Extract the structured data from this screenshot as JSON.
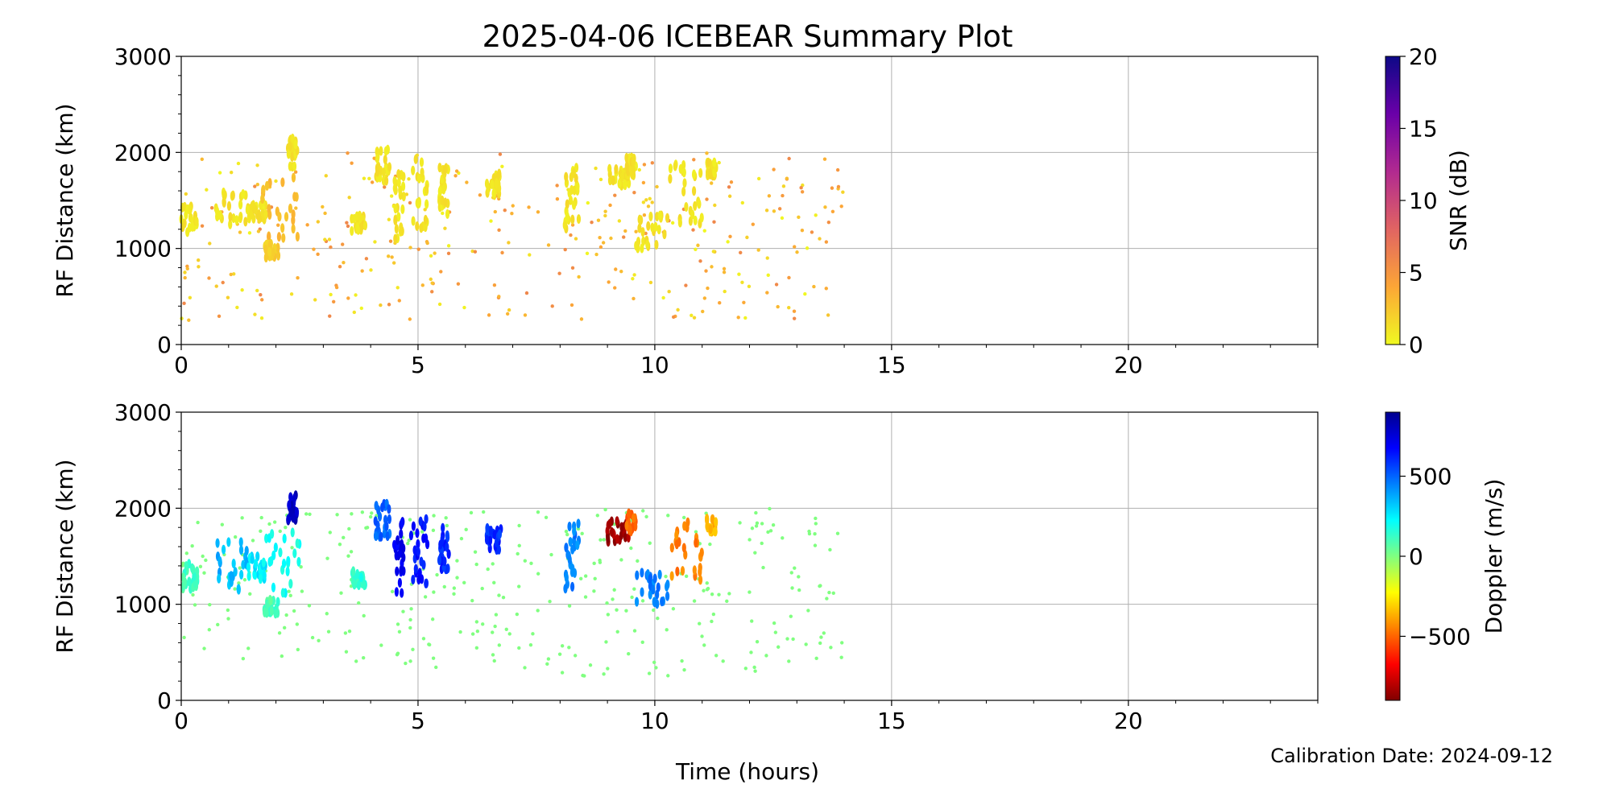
{
  "title": "2025-04-06 ICEBEAR Summary Plot",
  "calibration": "Calibration Date: 2024-09-12",
  "xlabel": "Time (hours)",
  "chart_data": [
    {
      "type": "scatter",
      "name": "snr-panel",
      "ylabel": "RF Distance (km)",
      "xlim": [
        0,
        24
      ],
      "ylim": [
        0,
        3000
      ],
      "xticks": [
        0,
        5,
        10,
        15,
        20
      ],
      "yticks": [
        0,
        1000,
        2000,
        3000
      ],
      "grid": true,
      "colorbar": {
        "label": "SNR (dB)",
        "range": [
          0,
          20
        ],
        "ticks": [
          0,
          5,
          10,
          15,
          20
        ],
        "colormap": "plasma_r",
        "colors": [
          "#f0f921",
          "#fca636",
          "#e16462",
          "#b12a90",
          "#6a00a8",
          "#0d0887"
        ]
      },
      "clusters": [
        {
          "x": [
            0.0,
            0.35
          ],
          "y": [
            1150,
            1450
          ],
          "value": 1
        },
        {
          "x": [
            0.7,
            1.4
          ],
          "y": [
            1150,
            1600
          ],
          "value": 1
        },
        {
          "x": [
            1.4,
            1.8
          ],
          "y": [
            1300,
            1500
          ],
          "value": 1
        },
        {
          "x": [
            1.7,
            2.5
          ],
          "y": [
            1100,
            1750
          ],
          "value": 3
        },
        {
          "x": [
            1.75,
            2.05
          ],
          "y": [
            900,
            1050
          ],
          "value": 2
        },
        {
          "x": [
            2.25,
            2.45
          ],
          "y": [
            1850,
            2150
          ],
          "value": 1
        },
        {
          "x": [
            3.6,
            3.9
          ],
          "y": [
            1180,
            1350
          ],
          "value": 1
        },
        {
          "x": [
            4.1,
            4.4
          ],
          "y": [
            1700,
            2050
          ],
          "value": 1
        },
        {
          "x": [
            4.5,
            4.7
          ],
          "y": [
            1100,
            1800
          ],
          "value": 1
        },
        {
          "x": [
            4.85,
            5.2
          ],
          "y": [
            1200,
            1950
          ],
          "value": 1
        },
        {
          "x": [
            5.45,
            5.65
          ],
          "y": [
            1350,
            1850
          ],
          "value": 1
        },
        {
          "x": [
            6.45,
            6.75
          ],
          "y": [
            1550,
            1800
          ],
          "value": 1
        },
        {
          "x": [
            8.1,
            8.4
          ],
          "y": [
            1150,
            1850
          ],
          "value": 1
        },
        {
          "x": [
            9.0,
            9.5
          ],
          "y": [
            1650,
            1880
          ],
          "value": 1
        },
        {
          "x": [
            9.4,
            9.6
          ],
          "y": [
            1750,
            1950
          ],
          "value": 1
        },
        {
          "x": [
            9.6,
            10.3
          ],
          "y": [
            1000,
            1350
          ],
          "value": 1
        },
        {
          "x": [
            10.3,
            11.0
          ],
          "y": [
            1250,
            1900
          ],
          "value": 1
        },
        {
          "x": [
            11.1,
            11.3
          ],
          "y": [
            1750,
            1900
          ],
          "value": 1
        }
      ],
      "scatter_range": {
        "x": [
          0,
          14
        ],
        "y": [
          250,
          2000
        ]
      },
      "scatter_value": [
        0,
        6
      ]
    },
    {
      "type": "scatter",
      "name": "doppler-panel",
      "ylabel": "RF Distance (km)",
      "xlim": [
        0,
        24
      ],
      "ylim": [
        0,
        3000
      ],
      "xticks": [
        0,
        5,
        10,
        15,
        20
      ],
      "yticks": [
        0,
        1000,
        2000,
        3000
      ],
      "grid": true,
      "colorbar": {
        "label": "Doppler (m/s)",
        "range": [
          -900,
          900
        ],
        "ticks": [
          -500,
          0,
          500
        ],
        "tick_labels": [
          "−500",
          "0",
          "500"
        ],
        "colormap": "jet_r",
        "colors": [
          "#800000",
          "#ff0000",
          "#ff8000",
          "#ffff00",
          "#80ff80",
          "#00ffff",
          "#0080ff",
          "#0000ff",
          "#00008f"
        ]
      },
      "clusters": [
        {
          "x": [
            0.0,
            0.35
          ],
          "y": [
            1150,
            1450
          ],
          "value": 100
        },
        {
          "x": [
            0.7,
            1.4
          ],
          "y": [
            1150,
            1650
          ],
          "value": 350
        },
        {
          "x": [
            1.4,
            1.8
          ],
          "y": [
            1250,
            1500
          ],
          "value": 250
        },
        {
          "x": [
            1.7,
            2.5
          ],
          "y": [
            1100,
            1750
          ],
          "value": 200
        },
        {
          "x": [
            1.75,
            2.05
          ],
          "y": [
            900,
            1050
          ],
          "value": 100
        },
        {
          "x": [
            2.25,
            2.45
          ],
          "y": [
            1850,
            2150
          ],
          "value": 800
        },
        {
          "x": [
            3.6,
            3.9
          ],
          "y": [
            1180,
            1350
          ],
          "value": 150
        },
        {
          "x": [
            4.1,
            4.4
          ],
          "y": [
            1700,
            2050
          ],
          "value": 500
        },
        {
          "x": [
            4.5,
            4.7
          ],
          "y": [
            1100,
            1900
          ],
          "value": 700
        },
        {
          "x": [
            4.85,
            5.2
          ],
          "y": [
            1200,
            1950
          ],
          "value": 650
        },
        {
          "x": [
            5.45,
            5.65
          ],
          "y": [
            1350,
            1850
          ],
          "value": 600
        },
        {
          "x": [
            6.45,
            6.75
          ],
          "y": [
            1550,
            1800
          ],
          "value": 600
        },
        {
          "x": [
            8.1,
            8.4
          ],
          "y": [
            1150,
            1850
          ],
          "value": 450
        },
        {
          "x": [
            9.0,
            9.5
          ],
          "y": [
            1650,
            1880
          ],
          "value": -850
        },
        {
          "x": [
            9.4,
            9.6
          ],
          "y": [
            1750,
            1950
          ],
          "value": -500
        },
        {
          "x": [
            9.6,
            10.3
          ],
          "y": [
            1000,
            1350
          ],
          "value": 450
        },
        {
          "x": [
            10.3,
            11.0
          ],
          "y": [
            1250,
            1900
          ],
          "value": -450
        },
        {
          "x": [
            11.1,
            11.3
          ],
          "y": [
            1750,
            1900
          ],
          "value": -350
        }
      ],
      "scatter_range": {
        "x": [
          0,
          14
        ],
        "y": [
          250,
          2000
        ]
      },
      "scatter_value": [
        0,
        0
      ]
    }
  ]
}
